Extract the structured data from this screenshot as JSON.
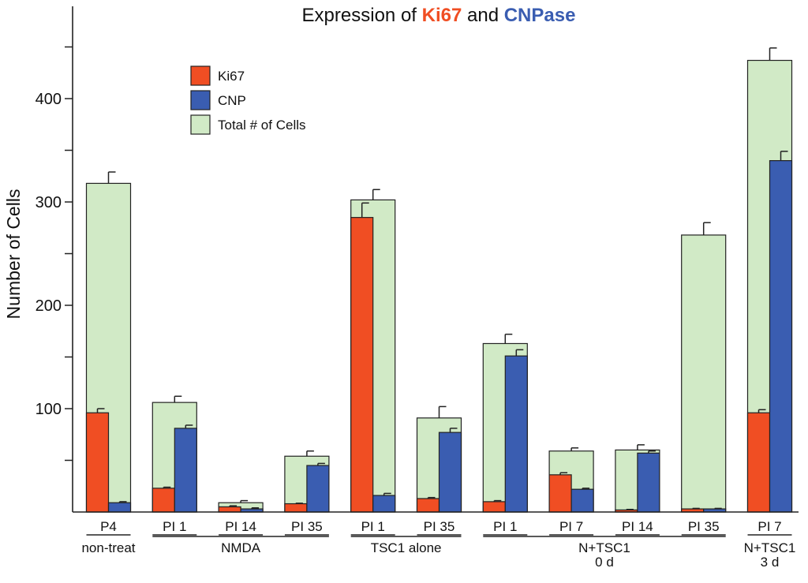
{
  "chart_data": {
    "type": "bar",
    "title": {
      "prefix": "Expression of ",
      "part1": "Ki67",
      "middle": " and ",
      "part2": "CNPase"
    },
    "ylabel": "Number of Cells",
    "xlabel": "",
    "ylim": [
      0,
      500
    ],
    "yticks": [
      100,
      200,
      300,
      400
    ],
    "minor_yticks": [
      50,
      150,
      250,
      350,
      450
    ],
    "colors": {
      "ki67": "#f04e23",
      "cnp": "#3a5db1",
      "total": "#d1eac6",
      "title_ki67": "#f04e23",
      "title_cnp": "#3a5db1"
    },
    "legend": [
      "Ki67",
      "CNP",
      "Total # of Cells"
    ],
    "categories": [
      {
        "label": "P4",
        "total": 318,
        "total_err": 11,
        "ki67": 96,
        "ki67_err": 4,
        "cnp": 9,
        "cnp_err": 1
      },
      {
        "label": "PI 1",
        "total": 106,
        "total_err": 6,
        "ki67": 23,
        "ki67_err": 1,
        "cnp": 81,
        "cnp_err": 3
      },
      {
        "label": "PI 14",
        "total": 9,
        "total_err": 2,
        "ki67": 5,
        "ki67_err": 1,
        "cnp": 3,
        "cnp_err": 1
      },
      {
        "label": "PI 35",
        "total": 54,
        "total_err": 5,
        "ki67": 8,
        "ki67_err": 0.5,
        "cnp": 45,
        "cnp_err": 2
      },
      {
        "label": "PI 1",
        "total": 302,
        "total_err": 10,
        "ki67": 285,
        "ki67_err": 14,
        "cnp": 16,
        "cnp_err": 2
      },
      {
        "label": "PI 35",
        "total": 91,
        "total_err": 11,
        "ki67": 13,
        "ki67_err": 1,
        "cnp": 77,
        "cnp_err": 4
      },
      {
        "label": "PI 1",
        "total": 163,
        "total_err": 9,
        "ki67": 10,
        "ki67_err": 1,
        "cnp": 151,
        "cnp_err": 6
      },
      {
        "label": "PI 7",
        "total": 59,
        "total_err": 3,
        "ki67": 36,
        "ki67_err": 2,
        "cnp": 22,
        "cnp_err": 1
      },
      {
        "label": "PI 14",
        "total": 60,
        "total_err": 5,
        "ki67": 2,
        "ki67_err": 0.5,
        "cnp": 57,
        "cnp_err": 2
      },
      {
        "label": "PI 35",
        "total": 268,
        "total_err": 12,
        "ki67": 3,
        "ki67_err": 0.5,
        "cnp": 3,
        "cnp_err": 0.5
      },
      {
        "label": "PI 7",
        "total": 437,
        "total_err": 12,
        "ki67": 96,
        "ki67_err": 3,
        "cnp": 340,
        "cnp_err": 9
      }
    ],
    "groups": [
      {
        "lines": [
          "non-treat"
        ],
        "start": 0,
        "end": 0
      },
      {
        "lines": [
          "NMDA"
        ],
        "start": 1,
        "end": 3
      },
      {
        "lines": [
          "TSC1 alone"
        ],
        "start": 4,
        "end": 5
      },
      {
        "lines": [
          "N+TSC1",
          "0 d"
        ],
        "start": 6,
        "end": 9
      },
      {
        "lines": [
          "N+TSC1",
          "3 d"
        ],
        "start": 10,
        "end": 10
      }
    ]
  }
}
